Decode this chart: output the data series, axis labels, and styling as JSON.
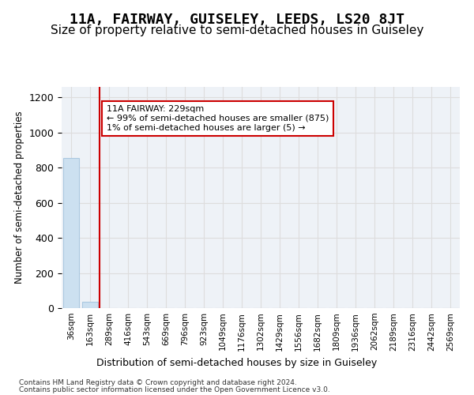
{
  "title": "11A, FAIRWAY, GUISELEY, LEEDS, LS20 8JT",
  "subtitle": "Size of property relative to semi-detached houses in Guiseley",
  "xlabel": "Distribution of semi-detached houses by size in Guiseley",
  "ylabel": "Number of semi-detached properties",
  "footer_line1": "Contains HM Land Registry data © Crown copyright and database right 2024.",
  "footer_line2": "Contains public sector information licensed under the Open Government Licence v3.0.",
  "bin_labels": [
    "36sqm",
    "163sqm",
    "289sqm",
    "416sqm",
    "543sqm",
    "669sqm",
    "796sqm",
    "923sqm",
    "1049sqm",
    "1176sqm",
    "1302sqm",
    "1429sqm",
    "1556sqm",
    "1682sqm",
    "1809sqm",
    "1936sqm",
    "2062sqm",
    "2189sqm",
    "2316sqm",
    "2442sqm",
    "2569sqm"
  ],
  "bar_values": [
    853,
    35,
    0,
    0,
    0,
    0,
    0,
    0,
    0,
    0,
    0,
    0,
    0,
    0,
    0,
    0,
    0,
    0,
    0,
    0,
    0
  ],
  "bar_color": "#cce0f0",
  "bar_edge_color": "#aac8e0",
  "highlight_line_color": "#cc0000",
  "annotation_text": "11A FAIRWAY: 229sqm\n← 99% of semi-detached houses are smaller (875)\n1% of semi-detached houses are larger (5) →",
  "annotation_box_color": "#ffffff",
  "annotation_box_edge": "#cc0000",
  "ylim": [
    0,
    1260
  ],
  "yticks": [
    0,
    200,
    400,
    600,
    800,
    1000,
    1200
  ],
  "grid_color": "#dddddd",
  "bg_color": "#eef2f7",
  "title_fontsize": 13,
  "subtitle_fontsize": 11
}
